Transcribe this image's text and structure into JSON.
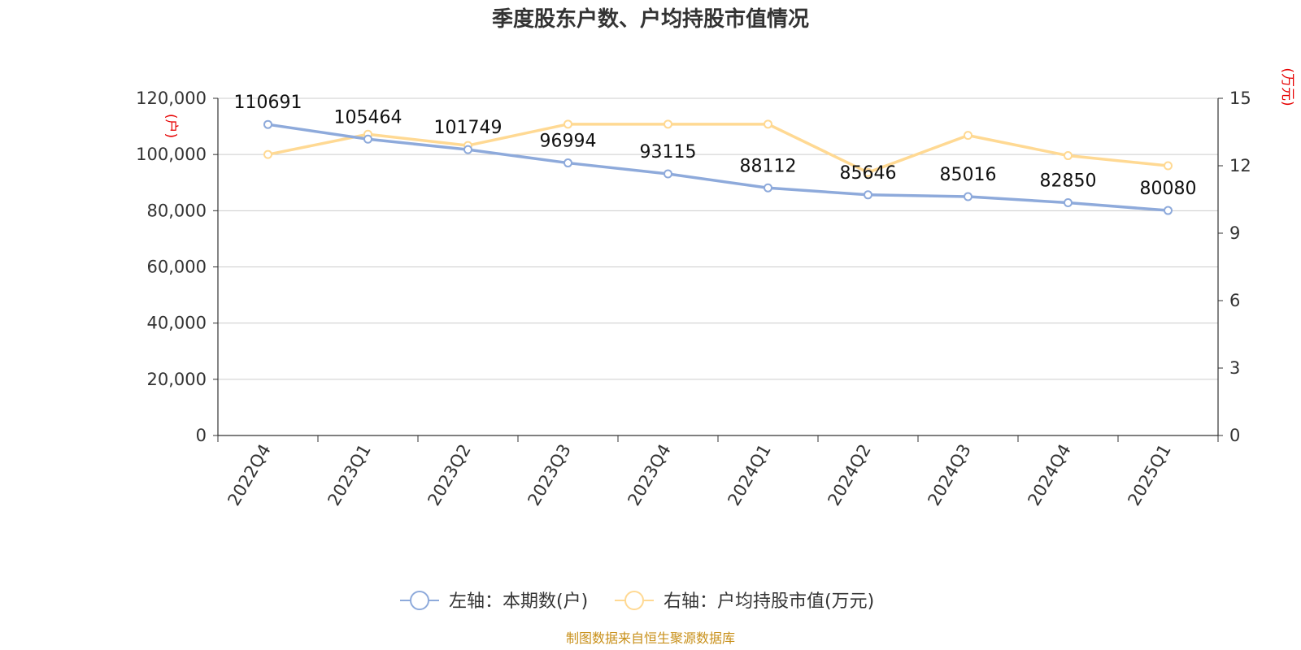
{
  "chart_data": {
    "type": "line",
    "title": "季度股东户数、户均持股市值情况",
    "categories": [
      "2022Q4",
      "2023Q1",
      "2023Q2",
      "2023Q3",
      "2023Q4",
      "2024Q1",
      "2024Q2",
      "2024Q3",
      "2024Q4",
      "2025Q1"
    ],
    "series": [
      {
        "name": "左轴：本期数(户)",
        "axis": "left",
        "color": "#8eaadb",
        "values": [
          110691,
          105464,
          101749,
          96994,
          93115,
          88112,
          85646,
          85016,
          82850,
          80080
        ],
        "labels": [
          "110691",
          "105464",
          "101749",
          "96994",
          "93115",
          "88112",
          "85646",
          "85016",
          "82850",
          "80080"
        ]
      },
      {
        "name": "右轴：户均持股市值(万元)",
        "axis": "right",
        "color": "#ffd993",
        "values": [
          12.5,
          13.4,
          12.9,
          13.85,
          13.85,
          13.85,
          11.7,
          13.35,
          12.45,
          12.0
        ]
      }
    ],
    "left_axis": {
      "unit": "(户)",
      "ylim": [
        0,
        120000
      ],
      "ticks": [
        0,
        20000,
        40000,
        60000,
        80000,
        100000,
        120000
      ],
      "tick_labels": [
        "0",
        "20,000",
        "40,000",
        "60,000",
        "80,000",
        "100,000",
        "120,000"
      ]
    },
    "right_axis": {
      "unit": "(万元)",
      "ylim": [
        0,
        15
      ],
      "ticks": [
        0,
        3,
        6,
        9,
        12,
        15
      ],
      "tick_labels": [
        "0",
        "3",
        "6",
        "9",
        "12",
        "15"
      ]
    },
    "grid": true,
    "legend_position": "bottom-center"
  },
  "source_note": "制图数据来自恒生聚源数据库"
}
